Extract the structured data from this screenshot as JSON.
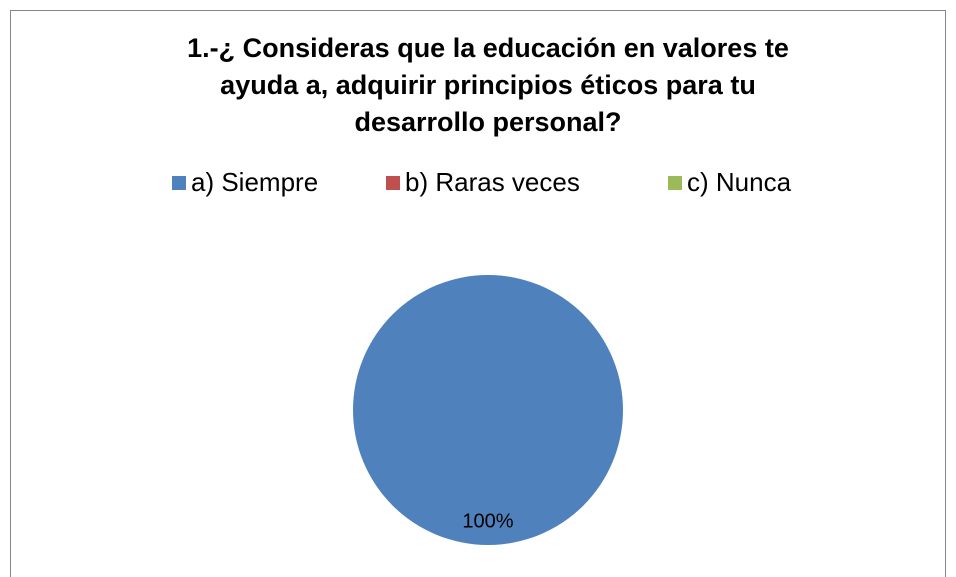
{
  "chart_data": {
    "type": "pie",
    "title": [
      "1.-¿ Consideras que la educación en valores te",
      "ayuda a, adquirir principios éticos para tu",
      "desarrollo personal?"
    ],
    "categories": [
      "a) Siempre",
      "b) Raras veces",
      "c) Nunca"
    ],
    "values": [
      100,
      0,
      0
    ],
    "value_labels": [
      "100%",
      null,
      null
    ],
    "colors": [
      "#4f81bd",
      "#c0504d",
      "#9bbb59"
    ],
    "legend": "top"
  }
}
